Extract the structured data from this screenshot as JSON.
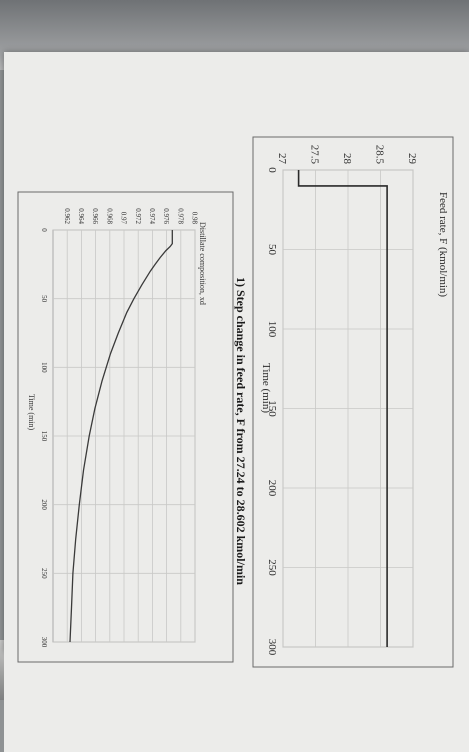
{
  "caption": "1)  Step change in feed rate, F from 27.24 to 28.602 kmol/min",
  "chart_data": [
    {
      "type": "line",
      "ylabel": "Feed rate, F (kmol/min)",
      "xlabel": "Time (min)",
      "xlim": [
        0,
        300
      ],
      "ylim": [
        27,
        29
      ],
      "x_ticks": [
        "0",
        "50",
        "100",
        "150",
        "200",
        "250",
        "300"
      ],
      "y_ticks": [
        "27",
        "27.5",
        "28",
        "28.5",
        "29"
      ],
      "grid": true,
      "series": [
        {
          "x": [
            0,
            10,
            10,
            300
          ],
          "y": [
            27.24,
            27.24,
            28.602,
            28.602
          ],
          "color": "#2a2a2a"
        }
      ]
    },
    {
      "type": "line",
      "ylabel": "Distillate composition, xd",
      "xlabel": "Time (min)",
      "xlim": [
        0,
        300
      ],
      "ylim": [
        0.96,
        0.98
      ],
      "x_ticks": [
        "0",
        "50",
        "100",
        "150",
        "200",
        "250",
        "300"
      ],
      "y_ticks": [
        "0.98",
        "0.978",
        "0.976",
        "0.974",
        "0.972",
        "0.97",
        "0.968",
        "0.966",
        "0.964",
        "0.962"
      ],
      "grid": true,
      "series": [
        {
          "x": [
            0,
            10,
            12,
            15,
            20,
            25,
            30,
            40,
            50,
            60,
            75,
            90,
            110,
            130,
            150,
            175,
            200,
            225,
            250,
            275,
            300
          ],
          "y": [
            0.9768,
            0.9768,
            0.9765,
            0.9759,
            0.9751,
            0.9744,
            0.9737,
            0.9725,
            0.9714,
            0.9704,
            0.9692,
            0.9681,
            0.9669,
            0.9659,
            0.9651,
            0.9643,
            0.9637,
            0.9632,
            0.9628,
            0.9626,
            0.9624
          ],
          "color": "#3a3a3a"
        }
      ]
    }
  ]
}
